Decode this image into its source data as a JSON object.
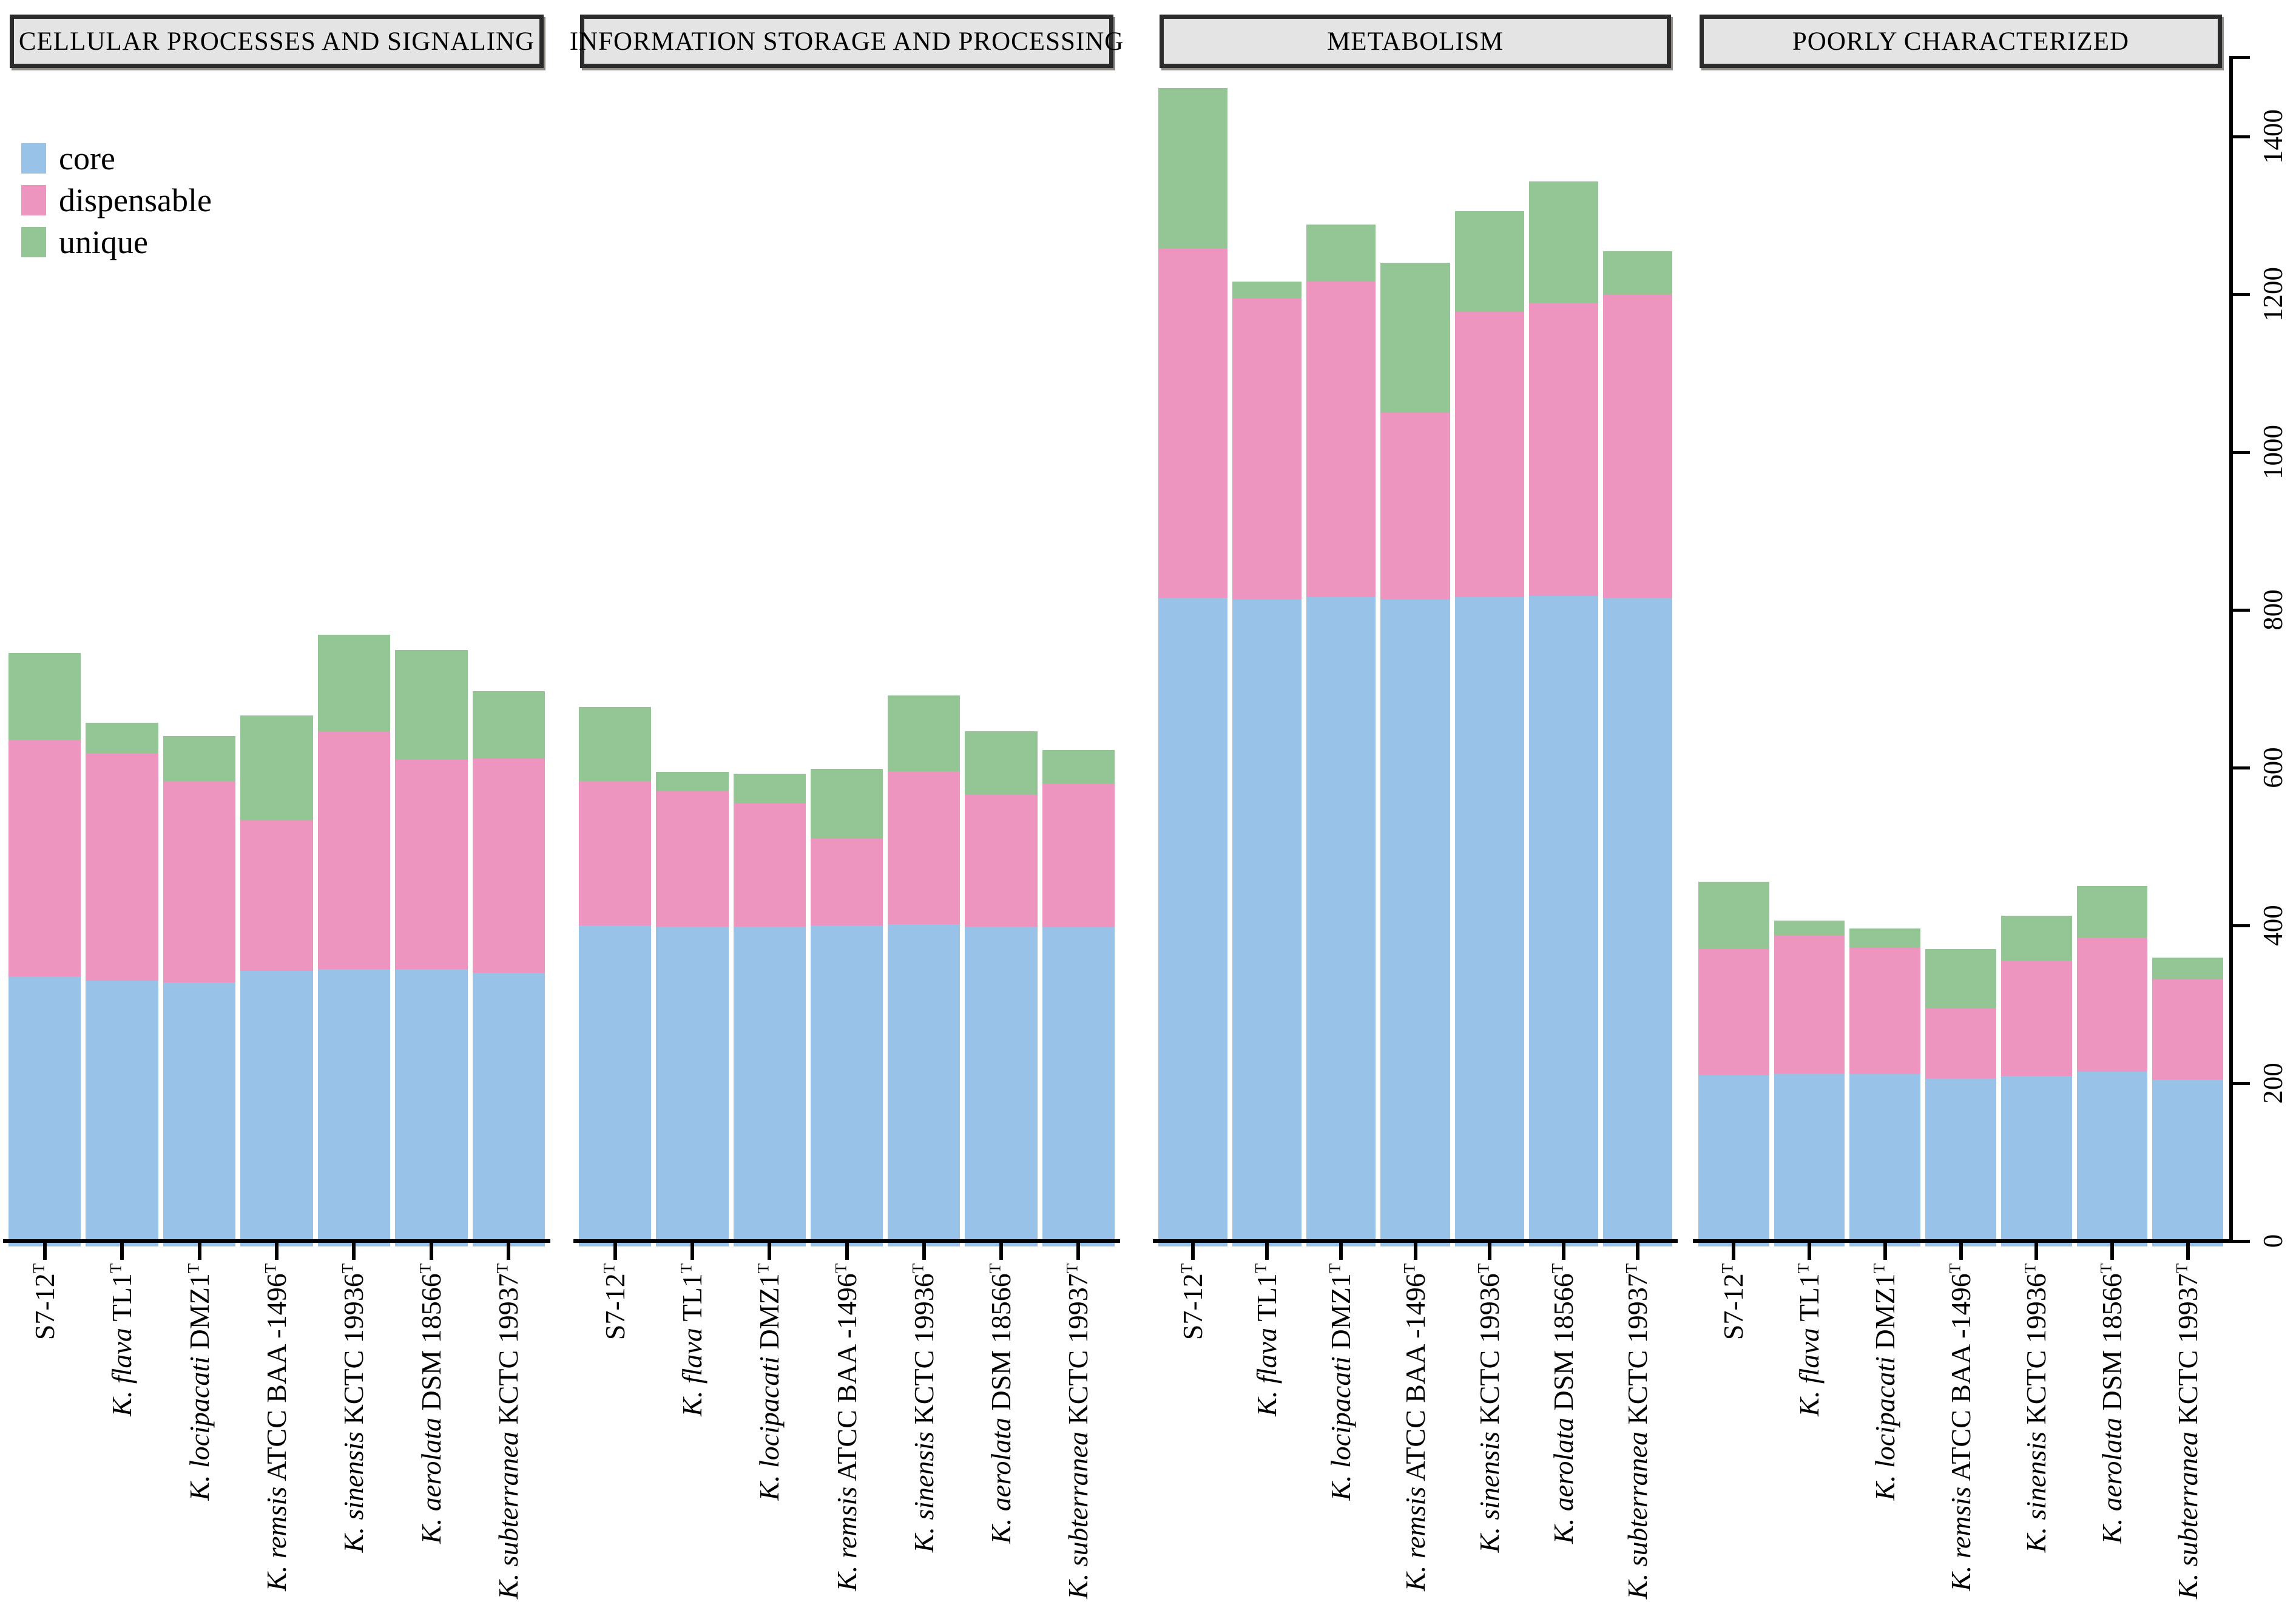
{
  "legend": {
    "items": [
      {
        "label": "core",
        "color": "#99c2e8"
      },
      {
        "label": "dispensable",
        "color": "#ee95bf"
      },
      {
        "label": "unique",
        "color": "#94c594"
      }
    ]
  },
  "chart_data": {
    "type": "bar",
    "stacked": true,
    "ylim": [
      0,
      1500
    ],
    "yticks": [
      0,
      200,
      400,
      600,
      800,
      1000,
      1200,
      1400
    ],
    "grid": false,
    "legend_position": "top-left",
    "categories": [
      {
        "italic": "",
        "rest": "S7-12",
        "sup": "T"
      },
      {
        "italic": "K. flava",
        "rest": " TL1",
        "sup": "T"
      },
      {
        "italic": "K. locipacati",
        "rest": " DMZ1",
        "sup": "T"
      },
      {
        "italic": "K. remsis",
        "rest": " ATCC BAA -1496",
        "sup": "T"
      },
      {
        "italic": "K. sinensis",
        "rest": " KCTC 19936",
        "sup": "T"
      },
      {
        "italic": "K. aerolata",
        "rest": " DSM 18566",
        "sup": "T"
      },
      {
        "italic": "K. subterranea",
        "rest": " KCTC 19937",
        "sup": "T"
      }
    ],
    "panels": [
      {
        "title": "CELLULAR PROCESSES AND SIGNALING",
        "series": [
          {
            "name": "core",
            "values": [
              333,
              328,
              325,
              340,
              342,
              342,
              338
            ]
          },
          {
            "name": "dispensable",
            "values": [
              300,
              288,
              256,
              191,
              302,
              266,
              271
            ]
          },
          {
            "name": "unique",
            "values": [
              110,
              39,
              57,
              133,
              122,
              139,
              86
            ]
          }
        ]
      },
      {
        "title": "INFORMATION STORAGE AND PROCESSING",
        "series": [
          {
            "name": "core",
            "values": [
              398,
              396,
              396,
              398,
              399,
              396,
              395
            ]
          },
          {
            "name": "dispensable",
            "values": [
              183,
              172,
              156,
              110,
              194,
              168,
              183
            ]
          },
          {
            "name": "unique",
            "values": [
              94,
              24,
              38,
              88,
              96,
              80,
              42
            ]
          }
        ]
      },
      {
        "title": "METABOLISM",
        "series": [
          {
            "name": "core",
            "values": [
              813,
              811,
              814,
              811,
              814,
              815,
              813
            ]
          },
          {
            "name": "dispensable",
            "values": [
              443,
              381,
              400,
              237,
              361,
              372,
              384
            ]
          },
          {
            "name": "unique",
            "values": [
              203,
              22,
              72,
              190,
              128,
              154,
              55
            ]
          }
        ]
      },
      {
        "title": "POORLY CHARACTERIZED",
        "series": [
          {
            "name": "core",
            "values": [
              208,
              210,
              209,
              204,
              207,
              212,
              202
            ]
          },
          {
            "name": "dispensable",
            "values": [
              160,
              175,
              160,
              89,
              146,
              170,
              127
            ]
          },
          {
            "name": "unique",
            "values": [
              85,
              19,
              25,
              75,
              57,
              66,
              28
            ]
          }
        ]
      }
    ]
  }
}
